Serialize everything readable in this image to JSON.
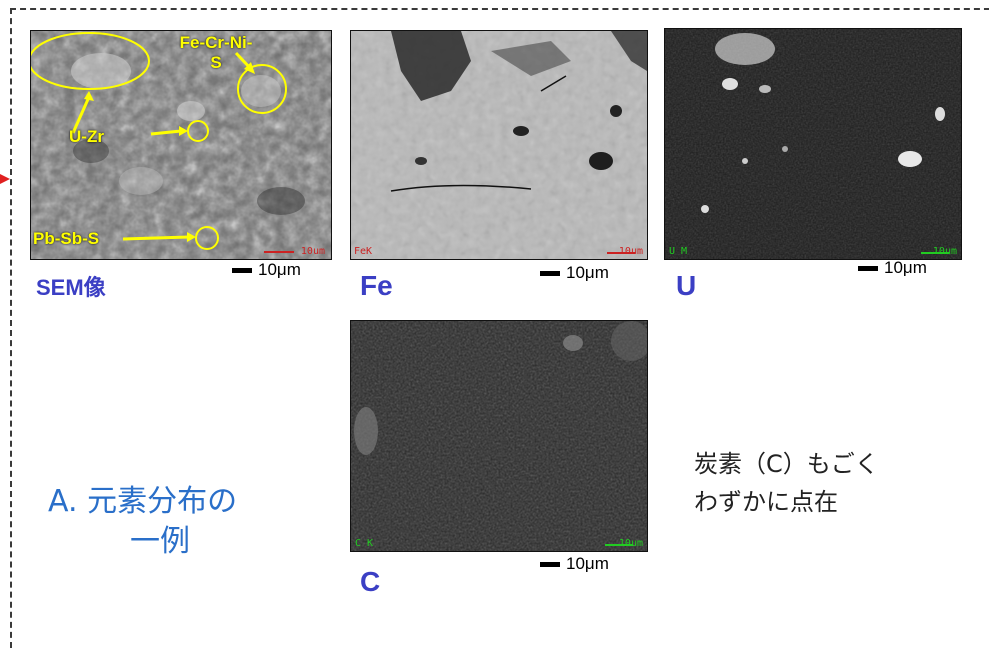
{
  "panels": {
    "sem": {
      "label": "SEM像",
      "scale": "10μm",
      "micro_scale": "10um",
      "annotations": {
        "fe_cr_ni_s_line1": "Fe-Cr-Ni-",
        "fe_cr_ni_s_line2": "S",
        "u_zr": "U-Zr",
        "pb_sb_s": "Pb-Sb-S"
      }
    },
    "fe": {
      "label": "Fe",
      "scale": "10μm",
      "micro_label": "FeK",
      "micro_scale": "10um"
    },
    "u": {
      "label": "U",
      "scale": "10μm",
      "micro_label": "U M",
      "micro_scale": "10um"
    },
    "c": {
      "label": "C",
      "scale": "10μm",
      "micro_label": "C K",
      "micro_scale": "10um"
    }
  },
  "caption_a": {
    "line1": "A. 元素分布の",
    "line2": "一例"
  },
  "note": {
    "line1": "炭素（C）もごく",
    "line2": "わずかに点在"
  },
  "colors": {
    "label_blue": "#3b3fc4",
    "annotation_yellow": "#ffff00",
    "micro_green": "#22cc22"
  }
}
